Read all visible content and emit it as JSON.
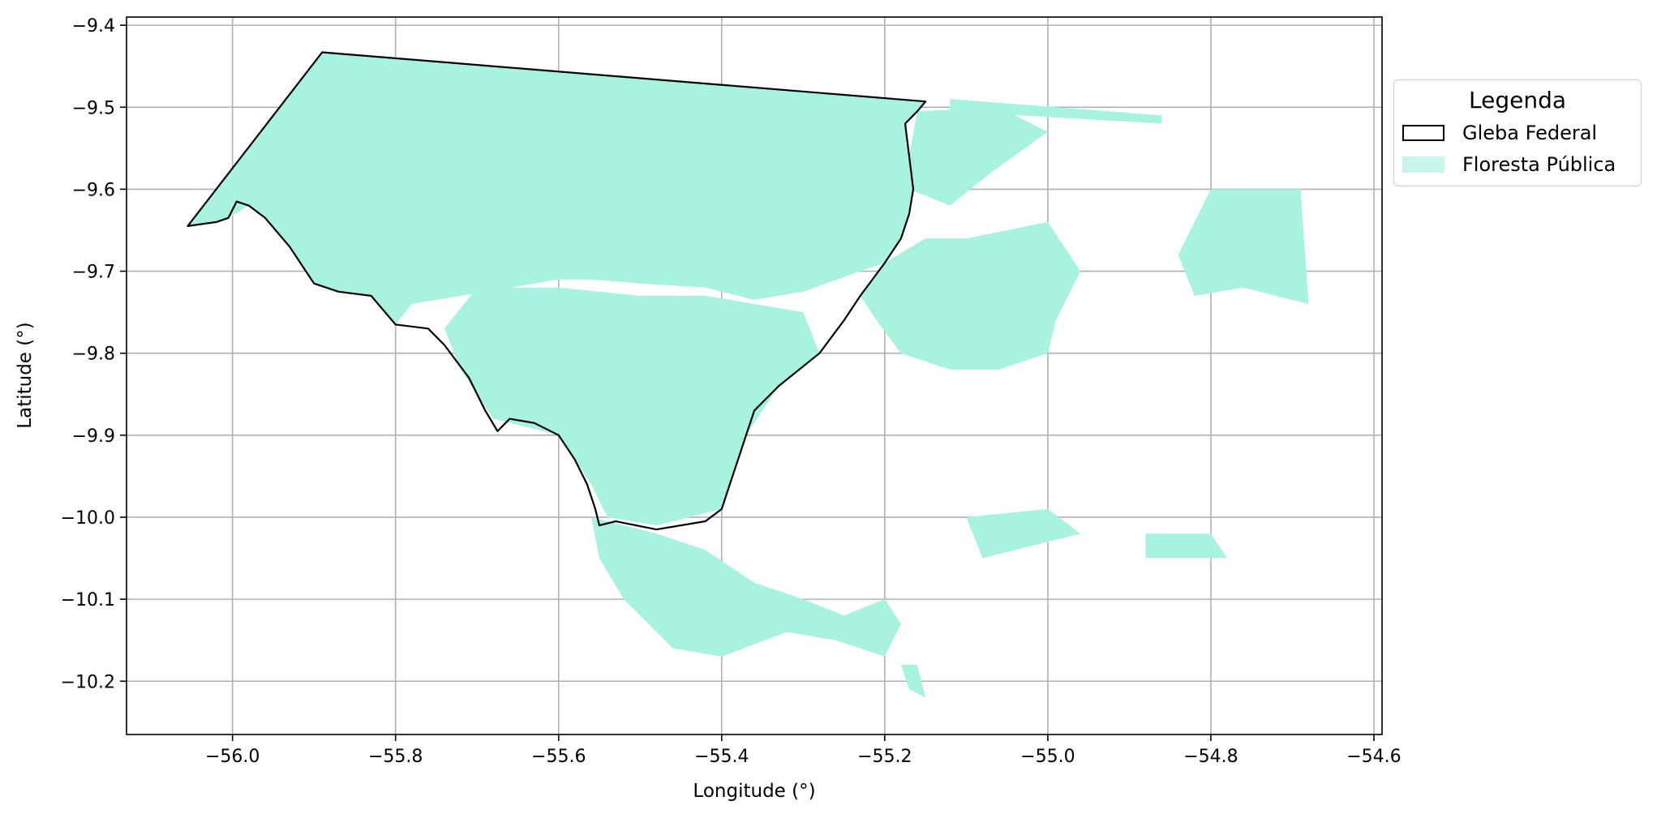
{
  "chart_data": {
    "type": "map",
    "xlabel": "Longitude (°)",
    "ylabel": "Latitude (°)",
    "xlim": [
      -56.13,
      -54.59
    ],
    "ylim": [
      -10.265,
      -9.39
    ],
    "xticks": [
      -56.0,
      -55.8,
      -55.6,
      -55.4,
      -55.2,
      -55.0,
      -54.8,
      -54.6
    ],
    "xtick_labels": [
      "−56.0",
      "−55.8",
      "−55.6",
      "−55.4",
      "−55.2",
      "−55.0",
      "−54.8",
      "−54.6"
    ],
    "yticks": [
      -9.4,
      -9.5,
      -9.6,
      -9.7,
      -9.8,
      -9.9,
      -10.0,
      -10.1,
      -10.2
    ],
    "ytick_labels": [
      "−9.4",
      "−9.5",
      "−9.6",
      "−9.7",
      "−9.8",
      "−9.9",
      "−10.0",
      "−10.1",
      "−10.2"
    ],
    "grid": true,
    "legend_position": "outside-right",
    "legend": {
      "title": "Legenda",
      "entries": [
        {
          "label": "Gleba Federal",
          "style": "outline",
          "color": "#000000"
        },
        {
          "label": "Floresta Pública",
          "style": "fill",
          "color": "#a7f3e0"
        }
      ]
    },
    "gleba_federal_boundary": [
      [
        -56.055,
        -9.645
      ],
      [
        -55.89,
        -9.433
      ],
      [
        -55.15,
        -9.493
      ],
      [
        -55.16,
        -9.505
      ],
      [
        -55.175,
        -9.52
      ],
      [
        -55.17,
        -9.56
      ],
      [
        -55.165,
        -9.6
      ],
      [
        -55.17,
        -9.63
      ],
      [
        -55.18,
        -9.66
      ],
      [
        -55.2,
        -9.69
      ],
      [
        -55.23,
        -9.73
      ],
      [
        -55.25,
        -9.76
      ],
      [
        -55.28,
        -9.8
      ],
      [
        -55.33,
        -9.84
      ],
      [
        -55.36,
        -9.87
      ],
      [
        -55.37,
        -9.9
      ],
      [
        -55.38,
        -9.93
      ],
      [
        -55.39,
        -9.96
      ],
      [
        -55.4,
        -9.99
      ],
      [
        -55.42,
        -10.005
      ],
      [
        -55.48,
        -10.015
      ],
      [
        -55.53,
        -10.005
      ],
      [
        -55.55,
        -10.01
      ],
      [
        -55.555,
        -9.99
      ],
      [
        -55.565,
        -9.96
      ],
      [
        -55.58,
        -9.93
      ],
      [
        -55.6,
        -9.9
      ],
      [
        -55.63,
        -9.885
      ],
      [
        -55.66,
        -9.88
      ],
      [
        -55.675,
        -9.895
      ],
      [
        -55.69,
        -9.87
      ],
      [
        -55.71,
        -9.83
      ],
      [
        -55.74,
        -9.79
      ],
      [
        -55.76,
        -9.77
      ],
      [
        -55.8,
        -9.765
      ],
      [
        -55.83,
        -9.73
      ],
      [
        -55.87,
        -9.725
      ],
      [
        -55.9,
        -9.715
      ],
      [
        -55.93,
        -9.67
      ],
      [
        -55.96,
        -9.635
      ],
      [
        -55.98,
        -9.62
      ],
      [
        -55.995,
        -9.615
      ],
      [
        -56.005,
        -9.635
      ],
      [
        -56.02,
        -9.64
      ]
    ],
    "floresta_publica_main": [
      [
        -56.055,
        -9.645
      ],
      [
        -55.89,
        -9.433
      ],
      [
        -55.15,
        -9.493
      ],
      [
        -55.16,
        -9.505
      ],
      [
        -55.175,
        -9.52
      ],
      [
        -55.17,
        -9.56
      ],
      [
        -55.165,
        -9.6
      ],
      [
        -55.17,
        -9.63
      ],
      [
        -55.18,
        -9.66
      ],
      [
        -55.2,
        -9.69
      ],
      [
        -55.23,
        -9.7
      ],
      [
        -55.3,
        -9.725
      ],
      [
        -55.36,
        -9.735
      ],
      [
        -55.42,
        -9.72
      ],
      [
        -55.5,
        -9.715
      ],
      [
        -55.56,
        -9.71
      ],
      [
        -55.6,
        -9.71
      ],
      [
        -55.66,
        -9.72
      ],
      [
        -55.72,
        -9.73
      ],
      [
        -55.78,
        -9.74
      ],
      [
        -55.8,
        -9.765
      ],
      [
        -55.83,
        -9.73
      ],
      [
        -55.87,
        -9.725
      ],
      [
        -55.9,
        -9.715
      ],
      [
        -55.93,
        -9.67
      ],
      [
        -55.96,
        -9.635
      ],
      [
        -55.98,
        -9.62
      ],
      [
        -56.005,
        -9.635
      ],
      [
        -56.02,
        -9.64
      ]
    ],
    "floresta_publica_fragments": [
      [
        [
          -55.2,
          -9.69
        ],
        [
          -55.15,
          -9.66
        ],
        [
          -55.1,
          -9.66
        ],
        [
          -55.0,
          -9.64
        ],
        [
          -54.96,
          -9.7
        ],
        [
          -54.99,
          -9.76
        ],
        [
          -55.0,
          -9.8
        ],
        [
          -55.06,
          -9.82
        ],
        [
          -55.12,
          -9.82
        ],
        [
          -55.18,
          -9.8
        ],
        [
          -55.21,
          -9.76
        ],
        [
          -55.23,
          -9.73
        ]
      ],
      [
        [
          -55.16,
          -9.505
        ],
        [
          -55.06,
          -9.5
        ],
        [
          -55.0,
          -9.53
        ],
        [
          -55.07,
          -9.58
        ],
        [
          -55.12,
          -9.62
        ],
        [
          -55.17,
          -9.6
        ],
        [
          -55.17,
          -9.56
        ]
      ],
      [
        [
          -55.12,
          -9.49
        ],
        [
          -54.86,
          -9.51
        ],
        [
          -54.86,
          -9.52
        ],
        [
          -55.12,
          -9.505
        ]
      ],
      [
        [
          -54.8,
          -9.6
        ],
        [
          -54.69,
          -9.6
        ],
        [
          -54.68,
          -9.74
        ],
        [
          -54.76,
          -9.72
        ],
        [
          -54.82,
          -9.73
        ],
        [
          -54.84,
          -9.68
        ]
      ],
      [
        [
          -55.7,
          -9.72
        ],
        [
          -55.6,
          -9.72
        ],
        [
          -55.5,
          -9.73
        ],
        [
          -55.42,
          -9.73
        ],
        [
          -55.36,
          -9.74
        ],
        [
          -55.3,
          -9.75
        ],
        [
          -55.28,
          -9.8
        ],
        [
          -55.33,
          -9.84
        ],
        [
          -55.37,
          -9.9
        ],
        [
          -55.4,
          -9.99
        ],
        [
          -55.48,
          -10.01
        ],
        [
          -55.54,
          -10.0
        ],
        [
          -55.56,
          -9.96
        ],
        [
          -55.6,
          -9.9
        ],
        [
          -55.68,
          -9.88
        ],
        [
          -55.72,
          -9.82
        ],
        [
          -55.74,
          -9.77
        ]
      ],
      [
        [
          -55.56,
          -10.0
        ],
        [
          -55.48,
          -10.02
        ],
        [
          -55.42,
          -10.04
        ],
        [
          -55.36,
          -10.08
        ],
        [
          -55.3,
          -10.1
        ],
        [
          -55.25,
          -10.12
        ],
        [
          -55.2,
          -10.1
        ],
        [
          -55.18,
          -10.13
        ],
        [
          -55.2,
          -10.17
        ],
        [
          -55.26,
          -10.15
        ],
        [
          -55.32,
          -10.14
        ],
        [
          -55.4,
          -10.17
        ],
        [
          -55.46,
          -10.16
        ],
        [
          -55.52,
          -10.1
        ],
        [
          -55.55,
          -10.05
        ]
      ],
      [
        [
          -55.1,
          -10.0
        ],
        [
          -55.0,
          -9.99
        ],
        [
          -54.96,
          -10.02
        ],
        [
          -55.08,
          -10.05
        ]
      ],
      [
        [
          -54.88,
          -10.02
        ],
        [
          -54.8,
          -10.02
        ],
        [
          -54.78,
          -10.05
        ],
        [
          -54.88,
          -10.05
        ]
      ],
      [
        [
          -55.18,
          -10.18
        ],
        [
          -55.17,
          -10.21
        ],
        [
          -55.15,
          -10.22
        ],
        [
          -55.16,
          -10.18
        ]
      ]
    ]
  }
}
